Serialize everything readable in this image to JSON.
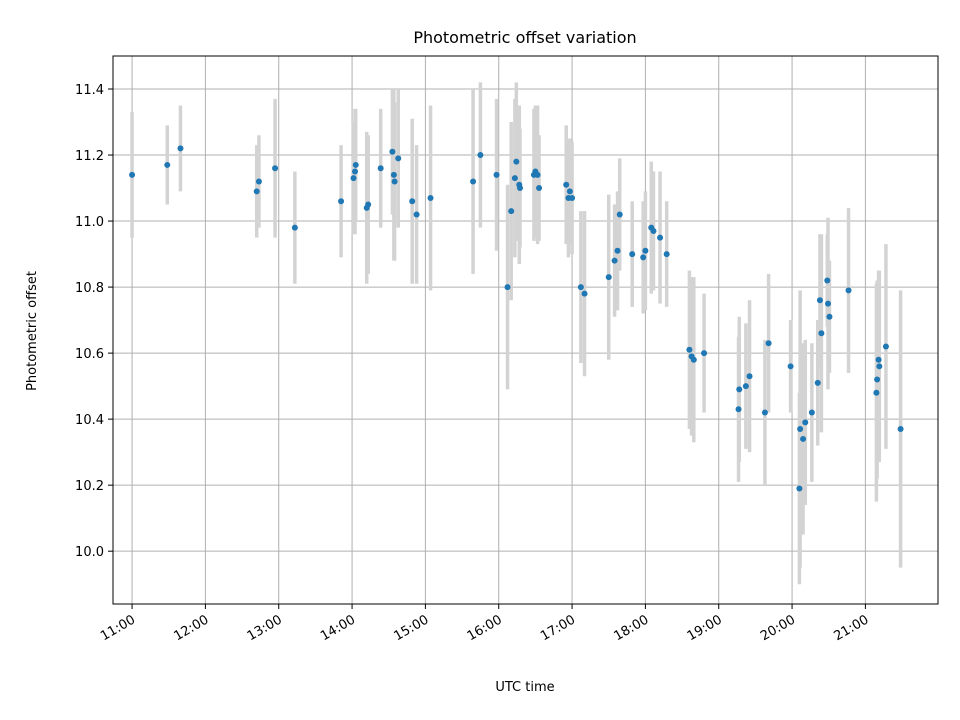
{
  "chart_data": {
    "type": "scatter",
    "title": "Photometric offset variation",
    "xlabel": "UTC time",
    "ylabel": "Photometric offset",
    "x_ticks": [
      "11:00",
      "12:00",
      "13:00",
      "14:00",
      "15:00",
      "16:00",
      "17:00",
      "18:00",
      "19:00",
      "20:00",
      "21:00"
    ],
    "y_ticks": [
      "10.0",
      "10.2",
      "10.4",
      "10.6",
      "10.8",
      "11.0",
      "11.2",
      "11.4"
    ],
    "xlim_hours": [
      10.74,
      21.99
    ],
    "ylim": [
      9.84,
      11.5
    ],
    "grid": true,
    "colors": {
      "point": "#1f77b4",
      "errorbar": "#d3d3d3",
      "grid": "#b0b0b0"
    },
    "series": [
      {
        "points": [
          [
            11.0,
            11.14,
            0.19
          ],
          [
            11.48,
            11.17,
            0.12
          ],
          [
            11.66,
            11.22,
            0.13
          ],
          [
            12.7,
            11.09,
            0.14
          ],
          [
            12.73,
            11.12,
            0.14
          ],
          [
            12.95,
            11.16,
            0.21
          ],
          [
            13.22,
            10.98,
            0.17
          ],
          [
            13.85,
            11.06,
            0.17
          ],
          [
            14.02,
            11.13,
            0.17
          ],
          [
            14.04,
            11.15,
            0.19
          ],
          [
            14.05,
            11.17,
            0.17
          ],
          [
            14.2,
            11.04,
            0.23
          ],
          [
            14.22,
            11.05,
            0.21
          ],
          [
            14.39,
            11.16,
            0.18
          ],
          [
            14.55,
            11.21,
            0.19
          ],
          [
            14.57,
            11.14,
            0.26
          ],
          [
            14.58,
            11.12,
            0.24
          ],
          [
            14.63,
            11.19,
            0.21
          ],
          [
            14.82,
            11.06,
            0.25
          ],
          [
            14.88,
            11.02,
            0.21
          ],
          [
            15.07,
            11.07,
            0.28
          ],
          [
            15.65,
            11.12,
            0.28
          ],
          [
            15.75,
            11.2,
            0.22
          ],
          [
            15.97,
            11.14,
            0.23
          ],
          [
            16.12,
            10.8,
            0.31
          ],
          [
            16.17,
            11.03,
            0.27
          ],
          [
            16.22,
            11.13,
            0.24
          ],
          [
            16.24,
            11.18,
            0.24
          ],
          [
            16.28,
            11.11,
            0.24
          ],
          [
            16.29,
            11.1,
            0.18
          ],
          [
            16.48,
            11.14,
            0.2
          ],
          [
            16.5,
            11.15,
            0.2
          ],
          [
            16.53,
            11.14,
            0.21
          ],
          [
            16.55,
            11.1,
            0.16
          ],
          [
            16.92,
            11.11,
            0.18
          ],
          [
            16.95,
            11.07,
            0.18
          ],
          [
            16.97,
            11.09,
            0.16
          ],
          [
            17.0,
            11.07,
            0.17
          ],
          [
            17.12,
            10.8,
            0.23
          ],
          [
            17.17,
            10.78,
            0.25
          ],
          [
            17.5,
            10.83,
            0.25
          ],
          [
            17.58,
            10.88,
            0.17
          ],
          [
            17.62,
            10.91,
            0.18
          ],
          [
            17.65,
            11.02,
            0.17
          ],
          [
            17.82,
            10.9,
            0.16
          ],
          [
            17.97,
            10.89,
            0.17
          ],
          [
            18.0,
            10.91,
            0.18
          ],
          [
            18.08,
            10.98,
            0.2
          ],
          [
            18.11,
            10.97,
            0.18
          ],
          [
            18.2,
            10.95,
            0.2
          ],
          [
            18.29,
            10.9,
            0.16
          ],
          [
            18.6,
            10.61,
            0.24
          ],
          [
            18.63,
            10.59,
            0.24
          ],
          [
            18.66,
            10.58,
            0.25
          ],
          [
            18.8,
            10.6,
            0.18
          ],
          [
            19.27,
            10.43,
            0.22
          ],
          [
            19.28,
            10.49,
            0.22
          ],
          [
            19.37,
            10.5,
            0.19
          ],
          [
            19.42,
            10.53,
            0.23
          ],
          [
            19.63,
            10.42,
            0.22
          ],
          [
            19.68,
            10.63,
            0.21
          ],
          [
            19.98,
            10.56,
            0.14
          ],
          [
            20.1,
            10.19,
            0.29
          ],
          [
            20.11,
            10.37,
            0.42
          ],
          [
            20.15,
            10.34,
            0.29
          ],
          [
            20.18,
            10.39,
            0.25
          ],
          [
            20.27,
            10.42,
            0.21
          ],
          [
            20.35,
            10.51,
            0.19
          ],
          [
            20.38,
            10.76,
            0.2
          ],
          [
            20.4,
            10.66,
            0.3
          ],
          [
            20.48,
            10.82,
            0.14
          ],
          [
            20.49,
            10.75,
            0.26
          ],
          [
            20.51,
            10.71,
            0.17
          ],
          [
            20.77,
            10.79,
            0.25
          ],
          [
            21.15,
            10.48,
            0.33
          ],
          [
            21.16,
            10.52,
            0.3
          ],
          [
            21.18,
            10.58,
            0.27
          ],
          [
            21.19,
            10.56,
            0.29
          ],
          [
            21.28,
            10.62,
            0.31
          ],
          [
            21.48,
            10.37,
            0.42
          ]
        ]
      }
    ]
  }
}
